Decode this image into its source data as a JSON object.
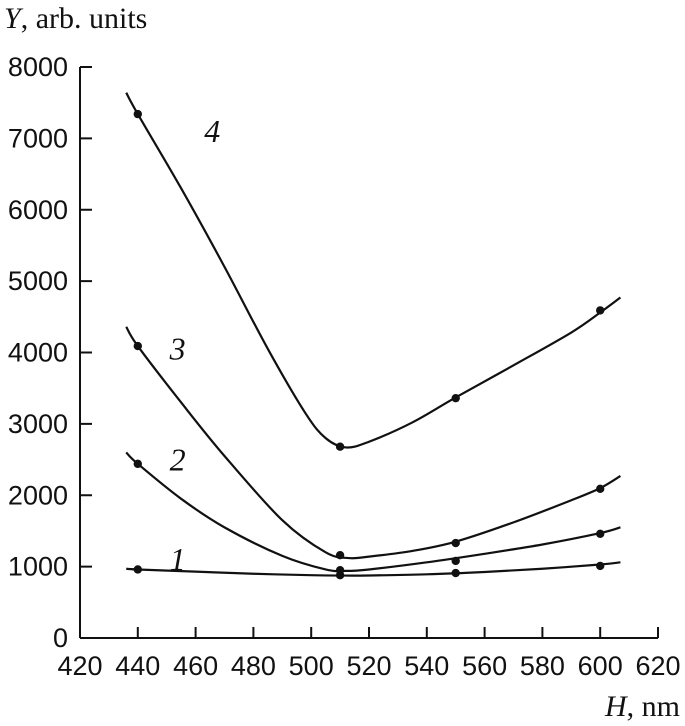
{
  "chart_data": {
    "type": "line",
    "title": "",
    "xlabel": {
      "var": "H",
      "unit": ", nm"
    },
    "ylabel": {
      "var": "Y",
      "unit": ", arb. units"
    },
    "xlim": [
      420,
      620
    ],
    "ylim": [
      0,
      8000
    ],
    "xticks": [
      420,
      440,
      460,
      480,
      500,
      520,
      540,
      560,
      580,
      600,
      620
    ],
    "yticks": [
      0,
      1000,
      2000,
      3000,
      4000,
      5000,
      6000,
      7000,
      8000
    ],
    "grid": false,
    "series": [
      {
        "label": "1",
        "points": [
          [
            440,
            960
          ],
          [
            510,
            880
          ],
          [
            550,
            910
          ],
          [
            600,
            1010
          ]
        ],
        "curve": [
          [
            436,
            970
          ],
          [
            440,
            960
          ],
          [
            460,
            930
          ],
          [
            480,
            900
          ],
          [
            500,
            880
          ],
          [
            510,
            875
          ],
          [
            520,
            876
          ],
          [
            540,
            892
          ],
          [
            560,
            925
          ],
          [
            580,
            970
          ],
          [
            600,
            1030
          ],
          [
            607,
            1060
          ]
        ]
      },
      {
        "label": "2",
        "points": [
          [
            440,
            2440
          ],
          [
            510,
            950
          ],
          [
            550,
            1080
          ],
          [
            600,
            1460
          ]
        ],
        "curve": [
          [
            436,
            2600
          ],
          [
            440,
            2440
          ],
          [
            455,
            1950
          ],
          [
            470,
            1550
          ],
          [
            490,
            1150
          ],
          [
            505,
            960
          ],
          [
            512,
            940
          ],
          [
            520,
            960
          ],
          [
            540,
            1060
          ],
          [
            560,
            1180
          ],
          [
            580,
            1310
          ],
          [
            600,
            1470
          ],
          [
            607,
            1550
          ]
        ]
      },
      {
        "label": "3",
        "points": [
          [
            440,
            4090
          ],
          [
            510,
            1160
          ],
          [
            550,
            1330
          ],
          [
            600,
            2090
          ]
        ],
        "curve": [
          [
            436,
            4360
          ],
          [
            440,
            4090
          ],
          [
            455,
            3300
          ],
          [
            470,
            2550
          ],
          [
            490,
            1650
          ],
          [
            505,
            1200
          ],
          [
            513,
            1120
          ],
          [
            520,
            1140
          ],
          [
            535,
            1220
          ],
          [
            550,
            1350
          ],
          [
            570,
            1620
          ],
          [
            590,
            1930
          ],
          [
            600,
            2100
          ],
          [
            607,
            2270
          ]
        ]
      },
      {
        "label": "4",
        "points": [
          [
            440,
            7340
          ],
          [
            510,
            2680
          ],
          [
            550,
            3360
          ],
          [
            600,
            4590
          ]
        ],
        "curve": [
          [
            436,
            7640
          ],
          [
            440,
            7340
          ],
          [
            455,
            6300
          ],
          [
            470,
            5200
          ],
          [
            485,
            4050
          ],
          [
            498,
            3150
          ],
          [
            505,
            2800
          ],
          [
            512,
            2670
          ],
          [
            520,
            2750
          ],
          [
            535,
            3020
          ],
          [
            550,
            3370
          ],
          [
            570,
            3820
          ],
          [
            590,
            4280
          ],
          [
            600,
            4560
          ],
          [
            607,
            4770
          ]
        ]
      }
    ],
    "series_label_positions_data": [
      [
        451,
        950
      ],
      [
        451,
        2350
      ],
      [
        451,
        3900
      ],
      [
        463,
        6950
      ]
    ]
  }
}
